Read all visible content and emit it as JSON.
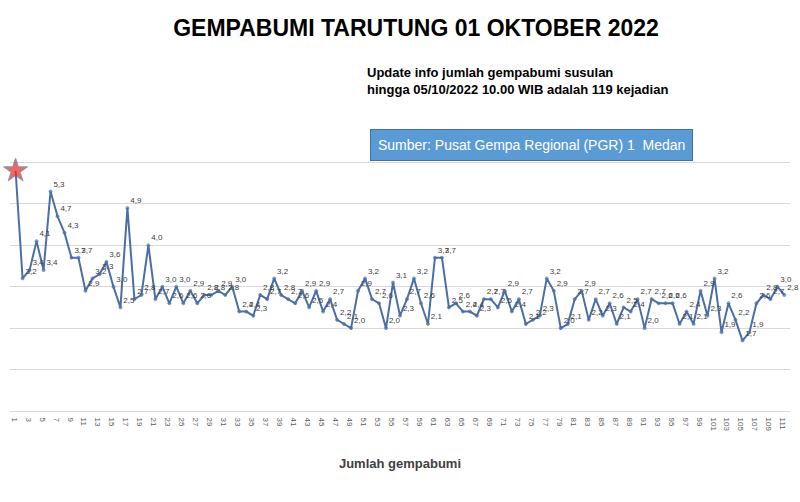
{
  "chart_data": {
    "type": "line",
    "title": "GEMPABUMI TARUTUNG 01 OKTOBER 2022",
    "subtitle": "Update info jumlah gempabumi susulan\nhingga 05/10/2022 10.00 WIB adalah 119 kejadian",
    "source": "Sumber: Pusat Gempa Regional (PGR) 1  Medan",
    "x_label": "Jumlah gempabumi",
    "categories": [
      "1",
      null,
      "3",
      null,
      "5",
      null,
      "7",
      null,
      "9",
      null,
      "11",
      null,
      "13",
      null,
      "15",
      null,
      "17",
      null,
      "19",
      null,
      "21",
      null,
      "23",
      null,
      "25",
      null,
      "27",
      null,
      "29",
      null,
      "31",
      null,
      "33",
      null,
      "35",
      null,
      "37",
      null,
      "39",
      null,
      "41",
      null,
      "43",
      null,
      "45",
      null,
      "47",
      null,
      "49",
      null,
      "51",
      null,
      "53",
      null,
      "55",
      null,
      "57",
      null,
      "59",
      null,
      "61",
      null,
      "63",
      null,
      "65",
      null,
      "67",
      null,
      "69",
      null,
      "71",
      null,
      "73",
      null,
      "75",
      null,
      "77",
      null,
      "79",
      null,
      "81",
      null,
      "83",
      null,
      "85",
      null,
      "87",
      null,
      "89",
      null,
      "91",
      null,
      "93",
      null,
      "95",
      null,
      "97",
      null,
      "99",
      null,
      "101",
      null,
      "103",
      null,
      "105",
      null,
      "107",
      null,
      "109",
      null,
      "111"
    ],
    "values": [
      5.8,
      3.2,
      3.4,
      4.1,
      3.4,
      5.3,
      4.7,
      4.3,
      3.7,
      3.7,
      2.9,
      3.2,
      3.3,
      3.6,
      3.0,
      2.5,
      4.9,
      2.7,
      2.8,
      4.0,
      2.7,
      3.0,
      2.6,
      3.0,
      2.6,
      2.9,
      2.6,
      2.8,
      2.8,
      2.9,
      2.8,
      3.0,
      2.4,
      2.4,
      2.3,
      2.8,
      2.7,
      3.2,
      2.8,
      2.7,
      2.6,
      2.9,
      2.5,
      2.9,
      2.4,
      2.7,
      2.2,
      2.1,
      2.0,
      2.9,
      3.2,
      2.7,
      2.6,
      2.0,
      3.1,
      2.3,
      2.7,
      3.2,
      2.6,
      2.1,
      3.7,
      3.7,
      2.5,
      2.6,
      2.4,
      2.4,
      2.3,
      2.7,
      2.7,
      2.5,
      2.9,
      2.4,
      2.7,
      2.1,
      2.2,
      2.3,
      3.2,
      2.9,
      2.0,
      2.1,
      2.7,
      2.9,
      2.2,
      2.7,
      2.3,
      2.6,
      2.1,
      2.5,
      2.4,
      2.7,
      2.0,
      2.7,
      2.6,
      2.6,
      2.6,
      2.1,
      2.4,
      2.1,
      2.9,
      2.3,
      3.2,
      1.9,
      2.6,
      2.2,
      1.7,
      1.9,
      2.6,
      2.8,
      2.7,
      3.0,
      2.8
    ],
    "value_labels": [
      null,
      "3,2",
      "3,4",
      "4,1",
      "3,4",
      "5,3",
      "4,7",
      "4,3",
      "3,7",
      "3,7",
      "2,9",
      "3,2",
      "3,3",
      "3,6",
      "3,0",
      "2,5",
      "4,9",
      "2,7",
      "2,8",
      "4,0",
      "2,7",
      "3,0",
      "2,6",
      "3,0",
      "2,6",
      "2,9",
      "2,6",
      "2,8",
      "2,8",
      "2,9",
      "2,8",
      "3,0",
      "2,4",
      "2,4",
      "2,3",
      "2,8",
      "2,7",
      "3,2",
      "2,8",
      "2,7",
      "2,6",
      "2,9",
      "2,5",
      "2,9",
      "2,4",
      "2,7",
      "2,2",
      "2,1",
      "2,0",
      "2,9",
      "3,2",
      "2,7",
      "2,6",
      "2,0",
      "3,1",
      "2,3",
      "2,7",
      "3,2",
      "2,6",
      "2,1",
      "3,7",
      "3,7",
      "2,5",
      "2,6",
      "2,4",
      "2,4",
      "2,3",
      "2,7",
      "2,7",
      "2,5",
      "2,9",
      "2,4",
      "2,7",
      "2,1",
      "2,2",
      "2,3",
      "3,2",
      "2,9",
      "2,0",
      "2,1",
      "2,7",
      "2,9",
      "2,2",
      "2,7",
      "2,3",
      "2,6",
      "2,1",
      "2,5",
      "2,4",
      "2,7",
      "2,0",
      "2,7",
      "2,6",
      "2,6",
      "2,6",
      "2,1",
      "2,4",
      "2,1",
      "2,9",
      "2,3",
      "3,2",
      "1,9",
      "2,6",
      "2,2",
      "1,7",
      "1,9",
      "2,6",
      "2,8",
      "2,7",
      "3,0",
      "2,8"
    ],
    "color": "#4a6fa5",
    "marker": "circle",
    "data_labels": true,
    "ylim": [
      0,
      7
    ],
    "yticks": [
      0,
      1,
      2,
      3,
      4,
      5,
      6,
      7
    ],
    "grid": true,
    "tick_labels": "x"
  }
}
